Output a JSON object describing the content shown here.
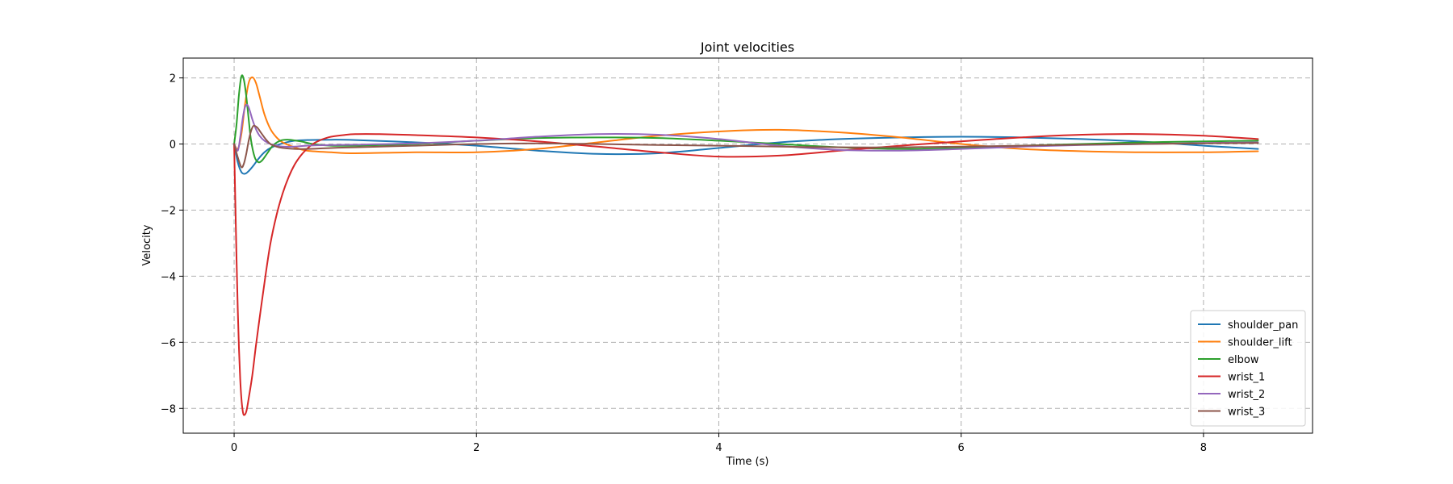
{
  "chart_data": {
    "type": "line",
    "title": "Joint velocities",
    "xlabel": "Time (s)",
    "ylabel": "Velocity",
    "xlim": [
      -0.42,
      8.9
    ],
    "ylim": [
      -8.75,
      2.6
    ],
    "x_ticks": [
      0,
      2,
      4,
      6,
      8
    ],
    "y_ticks": [
      2,
      0,
      -2,
      -4,
      -6,
      -8
    ],
    "x_tick_labels": [
      "0",
      "2",
      "4",
      "6",
      "8"
    ],
    "y_tick_labels": [
      "2",
      "0",
      "−2",
      "−4",
      "−6",
      "−8"
    ],
    "grid": true,
    "grid_style": "dashed",
    "legend_position": "lower right",
    "series": [
      {
        "name": "shoulder_pan",
        "color": "#1f77b4",
        "x": [
          0,
          0.03,
          0.06,
          0.09,
          0.12,
          0.16,
          0.2,
          0.25,
          0.3,
          0.4,
          0.5,
          0.6,
          0.8,
          1.0,
          1.5,
          2.0,
          2.5,
          3.0,
          3.5,
          4.0,
          4.5,
          5.0,
          5.5,
          6.0,
          6.5,
          7.0,
          7.5,
          8.0,
          8.45
        ],
        "y": [
          0.0,
          -0.55,
          -0.85,
          -0.9,
          -0.82,
          -0.65,
          -0.45,
          -0.25,
          -0.12,
          0.02,
          0.1,
          0.12,
          0.13,
          0.12,
          0.05,
          -0.05,
          -0.2,
          -0.3,
          -0.28,
          -0.12,
          0.05,
          0.15,
          0.2,
          0.22,
          0.2,
          0.15,
          0.07,
          -0.05,
          -0.15
        ]
      },
      {
        "name": "shoulder_lift",
        "color": "#ff7f0e",
        "x": [
          0,
          0.03,
          0.06,
          0.09,
          0.12,
          0.15,
          0.18,
          0.21,
          0.25,
          0.3,
          0.35,
          0.4,
          0.5,
          0.6,
          0.8,
          1.0,
          1.5,
          2.0,
          2.5,
          3.0,
          3.5,
          4.0,
          4.5,
          5.0,
          5.5,
          6.0,
          6.5,
          7.0,
          7.5,
          8.0,
          8.45
        ],
        "y": [
          0.0,
          -0.15,
          0.3,
          1.2,
          1.85,
          2.02,
          1.85,
          1.45,
          0.9,
          0.45,
          0.2,
          0.05,
          -0.1,
          -0.2,
          -0.25,
          -0.28,
          -0.25,
          -0.25,
          -0.15,
          0.05,
          0.25,
          0.38,
          0.43,
          0.35,
          0.2,
          0.0,
          -0.15,
          -0.22,
          -0.25,
          -0.25,
          -0.22
        ]
      },
      {
        "name": "elbow",
        "color": "#2ca02c",
        "x": [
          0,
          0.02,
          0.04,
          0.06,
          0.08,
          0.1,
          0.12,
          0.14,
          0.17,
          0.2,
          0.23,
          0.27,
          0.32,
          0.38,
          0.45,
          0.55,
          0.65,
          0.8,
          1.0,
          1.5,
          2.0,
          2.5,
          3.0,
          3.5,
          4.0,
          4.5,
          5.0,
          5.5,
          6.0,
          6.5,
          7.0,
          7.5,
          8.0,
          8.45
        ],
        "y": [
          0.0,
          0.6,
          1.5,
          2.05,
          1.95,
          1.45,
          0.75,
          0.1,
          -0.4,
          -0.55,
          -0.5,
          -0.3,
          -0.05,
          0.1,
          0.13,
          0.08,
          0.0,
          -0.05,
          -0.05,
          0.0,
          0.1,
          0.18,
          0.2,
          0.18,
          0.1,
          0.0,
          -0.1,
          -0.15,
          -0.12,
          -0.05,
          0.0,
          0.05,
          0.08,
          0.1
        ]
      },
      {
        "name": "wrist_1",
        "color": "#d62728",
        "x": [
          0,
          0.01,
          0.02,
          0.03,
          0.04,
          0.05,
          0.06,
          0.07,
          0.08,
          0.1,
          0.12,
          0.15,
          0.18,
          0.22,
          0.26,
          0.3,
          0.35,
          0.4,
          0.45,
          0.5,
          0.55,
          0.6,
          0.65,
          0.7,
          0.75,
          0.8,
          0.9,
          1.0,
          1.2,
          1.5,
          2.0,
          2.5,
          3.0,
          3.5,
          4.0,
          4.5,
          5.0,
          5.5,
          6.0,
          6.5,
          7.0,
          7.5,
          8.0,
          8.45
        ],
        "y": [
          0.0,
          -1.8,
          -3.5,
          -5.0,
          -6.2,
          -7.1,
          -7.7,
          -8.05,
          -8.2,
          -8.1,
          -7.7,
          -7.0,
          -6.1,
          -5.0,
          -3.95,
          -3.0,
          -2.15,
          -1.5,
          -1.0,
          -0.62,
          -0.35,
          -0.15,
          0.0,
          0.1,
          0.17,
          0.22,
          0.27,
          0.3,
          0.3,
          0.27,
          0.2,
          0.08,
          -0.08,
          -0.25,
          -0.38,
          -0.35,
          -0.2,
          -0.05,
          0.08,
          0.2,
          0.28,
          0.3,
          0.25,
          0.15
        ]
      },
      {
        "name": "wrist_2",
        "color": "#9467bd",
        "x": [
          0,
          0.03,
          0.05,
          0.07,
          0.09,
          0.11,
          0.13,
          0.15,
          0.18,
          0.21,
          0.25,
          0.3,
          0.35,
          0.4,
          0.5,
          0.6,
          0.8,
          1.0,
          1.5,
          2.0,
          2.5,
          3.0,
          3.5,
          4.0,
          4.5,
          5.0,
          5.5,
          6.0,
          6.5,
          7.0,
          7.5,
          8.0,
          8.45
        ],
        "y": [
          0.0,
          -0.2,
          0.2,
          0.75,
          1.12,
          1.18,
          1.0,
          0.75,
          0.45,
          0.25,
          0.1,
          0.0,
          -0.05,
          -0.08,
          -0.08,
          -0.05,
          -0.03,
          -0.02,
          0.02,
          0.1,
          0.22,
          0.3,
          0.28,
          0.15,
          -0.05,
          -0.18,
          -0.2,
          -0.15,
          -0.08,
          -0.03,
          0.0,
          0.03,
          0.05
        ]
      },
      {
        "name": "wrist_3",
        "color": "#8c564b",
        "x": [
          0,
          0.03,
          0.06,
          0.08,
          0.1,
          0.12,
          0.14,
          0.16,
          0.19,
          0.22,
          0.26,
          0.3,
          0.35,
          0.4,
          0.5,
          0.6,
          0.8,
          1.0,
          1.5,
          2.0,
          2.5,
          3.0,
          3.5,
          4.0,
          4.5,
          5.0,
          5.5,
          6.0,
          6.5,
          7.0,
          7.5,
          8.0,
          8.45
        ],
        "y": [
          0.0,
          -0.4,
          -0.7,
          -0.6,
          -0.3,
          0.1,
          0.4,
          0.55,
          0.5,
          0.35,
          0.15,
          0.0,
          -0.08,
          -0.12,
          -0.15,
          -0.15,
          -0.12,
          -0.1,
          -0.05,
          0.0,
          0.02,
          0.0,
          -0.03,
          -0.05,
          -0.08,
          -0.1,
          -0.1,
          -0.08,
          -0.05,
          -0.02,
          0.0,
          0.02,
          0.03
        ]
      }
    ]
  }
}
